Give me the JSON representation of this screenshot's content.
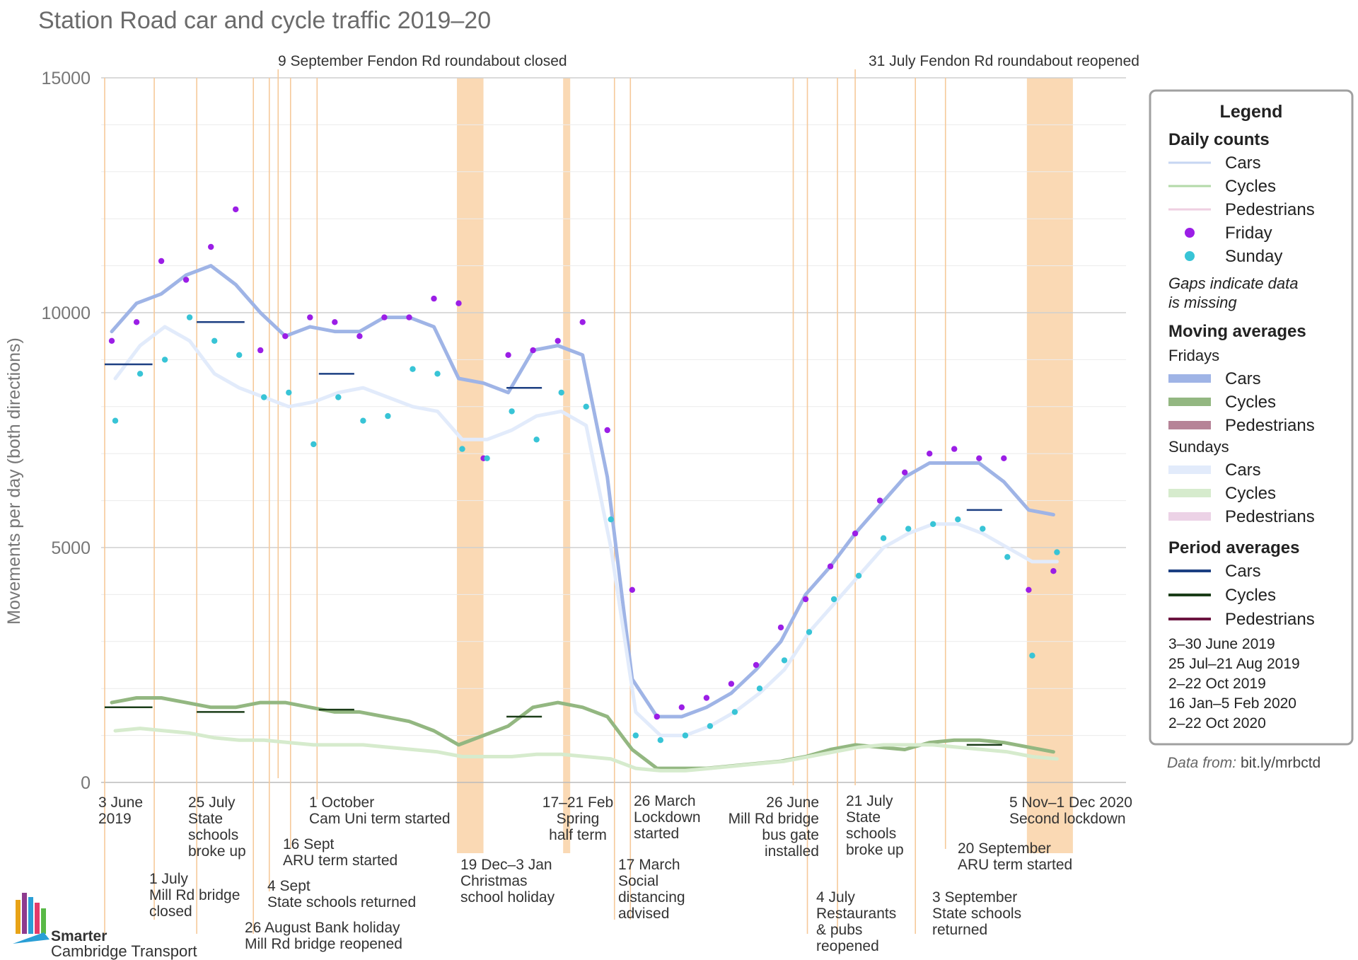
{
  "chart_data": {
    "type": "line",
    "title": "Station Road car and cycle traffic 2019–20",
    "ylabel": "Movements per day (both directions)",
    "ylim": [
      0,
      15000
    ],
    "yticks": [
      0,
      5000,
      10000,
      15000
    ],
    "xlim": [
      "2019-06-01",
      "2020-12-31"
    ],
    "grid": true,
    "legend_position": "right",
    "legend": {
      "title": "Legend",
      "daily_heading": "Daily counts",
      "daily_items": [
        {
          "label": "Cars",
          "kind": "line",
          "color": "#c6d6f2"
        },
        {
          "label": "Cycles",
          "kind": "line",
          "color": "#b3d9a8"
        },
        {
          "label": "Pedestrians",
          "kind": "line",
          "color": "#efcfe1"
        },
        {
          "label": "Friday",
          "kind": "dot",
          "color": "#9b1ee6"
        },
        {
          "label": "Sunday",
          "kind": "dot",
          "color": "#38c4d6"
        }
      ],
      "note_line1": "Gaps indicate data",
      "note_line2": "is missing",
      "moving_heading": "Moving averages",
      "fridays_label": "Fridays",
      "fridays_items": [
        {
          "label": "Cars",
          "color": "#9fb4e6"
        },
        {
          "label": "Cycles",
          "color": "#93b781"
        },
        {
          "label": "Pedestrians",
          "color": "#b68397"
        }
      ],
      "sundays_label": "Sundays",
      "sundays_items": [
        {
          "label": "Cars",
          "color": "#e2ebfb"
        },
        {
          "label": "Cycles",
          "color": "#d6ebcd"
        },
        {
          "label": "Pedestrians",
          "color": "#ecd2e6"
        }
      ],
      "period_heading": "Period averages",
      "period_items": [
        {
          "label": "Cars",
          "color": "#1c3f82"
        },
        {
          "label": "Cycles",
          "color": "#1b3d18"
        },
        {
          "label": "Pedestrians",
          "color": "#6b1440"
        }
      ],
      "periods": [
        "3–30 June 2019",
        "25 Jul–21 Aug 2019",
        "2–22 Oct 2019",
        "16 Jan–5 Feb 2020",
        "2–22 Oct 2020"
      ]
    },
    "shaded_periods": [
      {
        "start": "2019-12-19",
        "end": "2020-01-03"
      },
      {
        "start": "2020-02-17",
        "end": "2020-02-21"
      },
      {
        "start": "2020-11-05",
        "end": "2020-12-01"
      }
    ],
    "events": [
      {
        "date": "2019-06-03"
      },
      {
        "date": "2019-07-01"
      },
      {
        "date": "2019-07-25"
      },
      {
        "date": "2019-08-26"
      },
      {
        "date": "2019-09-04"
      },
      {
        "date": "2019-09-09"
      },
      {
        "date": "2019-09-16"
      },
      {
        "date": "2019-10-01"
      },
      {
        "date": "2020-03-17"
      },
      {
        "date": "2020-03-26"
      },
      {
        "date": "2020-06-26"
      },
      {
        "date": "2020-07-04"
      },
      {
        "date": "2020-07-21"
      },
      {
        "date": "2020-07-31"
      },
      {
        "date": "2020-09-03"
      },
      {
        "date": "2020-09-20"
      }
    ],
    "annotations": [
      {
        "text": [
          "9 September Fendon Rd roundabout closed"
        ]
      },
      {
        "text": [
          "31 July Fendon Rd roundabout reopened"
        ]
      },
      {
        "text": [
          "3 June",
          "2019"
        ]
      },
      {
        "text": [
          "25 July",
          "State",
          "schools",
          "broke up"
        ]
      },
      {
        "text": [
          "1 October",
          "Cam Uni term started"
        ]
      },
      {
        "text": [
          "16 Sept",
          "ARU term started"
        ]
      },
      {
        "text": [
          "1 July",
          "Mill Rd bridge",
          "closed"
        ]
      },
      {
        "text": [
          "4 Sept",
          "State schools returned"
        ]
      },
      {
        "text": [
          "26 August Bank holiday",
          "Mill Rd bridge reopened"
        ]
      },
      {
        "text": [
          "19 Dec–3 Jan",
          "Christmas",
          "school holiday"
        ]
      },
      {
        "text": [
          "17–21 Feb",
          "Spring",
          "half term"
        ]
      },
      {
        "text": [
          "26 March",
          "Lockdown",
          "started"
        ]
      },
      {
        "text": [
          "17 March",
          "Social",
          "distancing",
          "advised"
        ]
      },
      {
        "text": [
          "26 June",
          "Mill Rd bridge",
          "bus  gate",
          "installed"
        ]
      },
      {
        "text": [
          "21 July",
          "State",
          "schools",
          "broke up"
        ]
      },
      {
        "text": [
          "4 July",
          "Restaurants",
          "& pubs",
          "reopened"
        ]
      },
      {
        "text": [
          "5 Nov–1 Dec 2020",
          "Second lockdown"
        ]
      },
      {
        "text": [
          "20 September",
          "ARU term started"
        ]
      },
      {
        "text": [
          "3 September",
          "State schools",
          "returned"
        ]
      }
    ],
    "series": [
      {
        "name": "Fridays Cars",
        "x": [
          "2019-06-07",
          "2019-06-21",
          "2019-07-05",
          "2019-07-19",
          "2019-08-02",
          "2019-08-16",
          "2019-08-30",
          "2019-09-13",
          "2019-09-27",
          "2019-10-11",
          "2019-10-25",
          "2019-11-08",
          "2019-11-22",
          "2019-12-06",
          "2019-12-20",
          "2020-01-03",
          "2020-01-17",
          "2020-01-31",
          "2020-02-14",
          "2020-02-28",
          "2020-03-13",
          "2020-03-27",
          "2020-04-10",
          "2020-04-24",
          "2020-05-08",
          "2020-05-22",
          "2020-06-05",
          "2020-06-19",
          "2020-07-03",
          "2020-07-17",
          "2020-07-31",
          "2020-08-14",
          "2020-08-28",
          "2020-09-11",
          "2020-09-25",
          "2020-10-09",
          "2020-10-23",
          "2020-11-06",
          "2020-11-20"
        ],
        "y": [
          9600,
          10200,
          10400,
          10800,
          11000,
          10600,
          10000,
          9500,
          9700,
          9600,
          9600,
          9900,
          9900,
          9700,
          8600,
          8500,
          8300,
          9200,
          9300,
          9100,
          6500,
          2200,
          1400,
          1400,
          1600,
          1900,
          2400,
          3000,
          4000,
          4600,
          5300,
          5900,
          6500,
          6800,
          6800,
          6800,
          6400,
          5800,
          5700
        ]
      },
      {
        "name": "Sundays Cars",
        "x": [
          "2019-06-09",
          "2019-06-23",
          "2019-07-07",
          "2019-07-21",
          "2019-08-04",
          "2019-08-18",
          "2019-09-01",
          "2019-09-15",
          "2019-09-29",
          "2019-10-13",
          "2019-10-27",
          "2019-11-10",
          "2019-11-24",
          "2019-12-08",
          "2019-12-22",
          "2020-01-05",
          "2020-01-19",
          "2020-02-02",
          "2020-02-16",
          "2020-03-01",
          "2020-03-15",
          "2020-03-29",
          "2020-04-12",
          "2020-04-26",
          "2020-05-10",
          "2020-05-24",
          "2020-06-07",
          "2020-06-21",
          "2020-07-05",
          "2020-07-19",
          "2020-08-02",
          "2020-08-16",
          "2020-08-30",
          "2020-09-13",
          "2020-09-27",
          "2020-10-11",
          "2020-10-25",
          "2020-11-08",
          "2020-11-22"
        ],
        "y": [
          8600,
          9300,
          9700,
          9400,
          8700,
          8400,
          8200,
          8000,
          8100,
          8300,
          8400,
          8200,
          8000,
          7900,
          7300,
          7300,
          7500,
          7800,
          7900,
          7600,
          5000,
          1500,
          1000,
          1000,
          1200,
          1500,
          1900,
          2400,
          3200,
          3800,
          4400,
          5000,
          5300,
          5500,
          5500,
          5300,
          5000,
          4700,
          4700
        ]
      },
      {
        "name": "Fridays Cycles",
        "x": [
          "2019-06-07",
          "2019-06-21",
          "2019-07-05",
          "2019-07-19",
          "2019-08-02",
          "2019-08-16",
          "2019-08-30",
          "2019-09-13",
          "2019-09-27",
          "2019-10-11",
          "2019-10-25",
          "2019-11-08",
          "2019-11-22",
          "2019-12-06",
          "2019-12-20",
          "2020-01-03",
          "2020-01-17",
          "2020-01-31",
          "2020-02-14",
          "2020-02-28",
          "2020-03-13",
          "2020-03-27",
          "2020-04-10",
          "2020-04-24",
          "2020-05-08",
          "2020-05-22",
          "2020-06-05",
          "2020-06-19",
          "2020-07-03",
          "2020-07-17",
          "2020-07-31",
          "2020-08-14",
          "2020-08-28",
          "2020-09-11",
          "2020-09-25",
          "2020-10-09",
          "2020-10-23",
          "2020-11-06",
          "2020-11-20"
        ],
        "y": [
          1700,
          1800,
          1800,
          1700,
          1600,
          1600,
          1700,
          1700,
          1600,
          1500,
          1500,
          1400,
          1300,
          1100,
          800,
          1000,
          1200,
          1600,
          1700,
          1600,
          1400,
          700,
          300,
          300,
          300,
          350,
          400,
          450,
          550,
          700,
          800,
          750,
          700,
          850,
          900,
          900,
          850,
          750,
          650
        ]
      },
      {
        "name": "Sundays Cycles",
        "x": [
          "2019-06-09",
          "2019-06-23",
          "2019-07-07",
          "2019-07-21",
          "2019-08-04",
          "2019-08-18",
          "2019-09-01",
          "2019-09-15",
          "2019-09-29",
          "2019-10-13",
          "2019-10-27",
          "2019-11-10",
          "2019-11-24",
          "2019-12-08",
          "2019-12-22",
          "2020-01-05",
          "2020-01-19",
          "2020-02-02",
          "2020-02-16",
          "2020-03-01",
          "2020-03-15",
          "2020-03-29",
          "2020-04-12",
          "2020-04-26",
          "2020-05-10",
          "2020-05-24",
          "2020-06-07",
          "2020-06-21",
          "2020-07-05",
          "2020-07-19",
          "2020-08-02",
          "2020-08-16",
          "2020-08-30",
          "2020-09-13",
          "2020-09-27",
          "2020-10-11",
          "2020-10-25",
          "2020-11-08",
          "2020-11-22"
        ],
        "y": [
          1100,
          1150,
          1100,
          1050,
          950,
          900,
          900,
          850,
          800,
          800,
          800,
          750,
          700,
          650,
          550,
          550,
          550,
          600,
          600,
          550,
          500,
          300,
          250,
          250,
          300,
          350,
          400,
          450,
          550,
          650,
          750,
          800,
          800,
          800,
          750,
          700,
          650,
          550,
          500
        ]
      },
      {
        "name": "Friday",
        "x": [
          "2019-06-07",
          "2019-06-21",
          "2019-07-05",
          "2019-07-19",
          "2019-08-02",
          "2019-08-16",
          "2019-08-30",
          "2019-09-13",
          "2019-09-27",
          "2019-10-11",
          "2019-10-25",
          "2019-11-08",
          "2019-11-22",
          "2019-12-06",
          "2019-12-20",
          "2020-01-03",
          "2020-01-17",
          "2020-01-31",
          "2020-02-14",
          "2020-02-28",
          "2020-03-13",
          "2020-03-27",
          "2020-04-10",
          "2020-04-24",
          "2020-05-08",
          "2020-05-22",
          "2020-06-05",
          "2020-06-19",
          "2020-07-03",
          "2020-07-17",
          "2020-07-31",
          "2020-08-14",
          "2020-08-28",
          "2020-09-11",
          "2020-09-25",
          "2020-10-09",
          "2020-10-23",
          "2020-11-06",
          "2020-11-20"
        ],
        "y": [
          9400,
          9800,
          11100,
          10700,
          11400,
          12200,
          9200,
          9500,
          9900,
          9800,
          9500,
          9900,
          9900,
          10300,
          10200,
          6900,
          9100,
          9200,
          9400,
          9800,
          7500,
          4100,
          1400,
          1600,
          1800,
          2100,
          2500,
          3300,
          3900,
          4600,
          5300,
          6000,
          6600,
          7000,
          7100,
          6900,
          6900,
          4100,
          4500
        ]
      },
      {
        "name": "Sunday",
        "x": [
          "2019-06-09",
          "2019-06-23",
          "2019-07-07",
          "2019-07-21",
          "2019-08-04",
          "2019-08-18",
          "2019-09-01",
          "2019-09-15",
          "2019-09-29",
          "2019-10-13",
          "2019-10-27",
          "2019-11-10",
          "2019-11-24",
          "2019-12-08",
          "2019-12-22",
          "2020-01-05",
          "2020-01-19",
          "2020-02-02",
          "2020-02-16",
          "2020-03-01",
          "2020-03-15",
          "2020-03-29",
          "2020-04-12",
          "2020-04-26",
          "2020-05-10",
          "2020-05-24",
          "2020-06-07",
          "2020-06-21",
          "2020-07-05",
          "2020-07-19",
          "2020-08-02",
          "2020-08-16",
          "2020-08-30",
          "2020-09-13",
          "2020-09-27",
          "2020-10-11",
          "2020-10-25",
          "2020-11-08",
          "2020-11-22"
        ],
        "y": [
          7700,
          8700,
          9000,
          9900,
          9400,
          9100,
          8200,
          8300,
          7200,
          8200,
          7700,
          7800,
          8800,
          8700,
          7100,
          6900,
          7900,
          7300,
          8300,
          8000,
          5600,
          1000,
          900,
          1000,
          1200,
          1500,
          2000,
          2600,
          3200,
          3900,
          4400,
          5200,
          5400,
          5500,
          5600,
          5400,
          4800,
          2700,
          4900
        ]
      }
    ],
    "period_averages": [
      {
        "period": "3–30 June 2019",
        "cars": 8900,
        "cycles": 1600
      },
      {
        "period": "25 Jul–21 Aug 2019",
        "cars": 9800,
        "cycles": 1500
      },
      {
        "period": "2–22 Oct 2019",
        "cars": 8700,
        "cycles": 1550
      },
      {
        "period": "16 Jan–5 Feb 2020",
        "cars": 8400,
        "cycles": 1400
      },
      {
        "period": "2–22 Oct 2020",
        "cars": 5800,
        "cycles": 800
      }
    ]
  },
  "credit": {
    "prefix": "Data from:",
    "link": "bit.ly/mrbctd"
  },
  "logo": {
    "line1": "Smarter",
    "line2": "Cambridge Transport"
  }
}
